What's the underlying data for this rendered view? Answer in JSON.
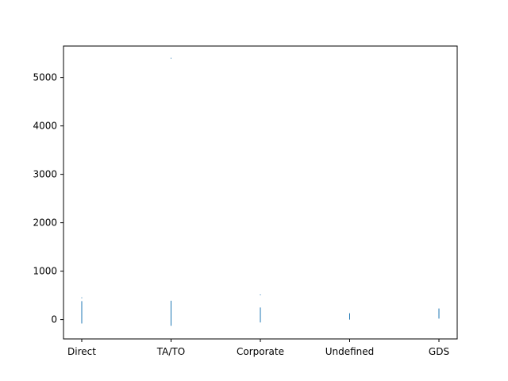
{
  "chart_data": {
    "type": "scatter",
    "title": "",
    "xlabel": "",
    "ylabel": "",
    "categories": [
      "Direct",
      "TA/TO",
      "Corporate",
      "Undefined",
      "GDS"
    ],
    "ylim": [
      -400,
      5650
    ],
    "yticks": [
      0,
      1000,
      2000,
      3000,
      4000,
      5000
    ],
    "grid": false,
    "legend": "none",
    "marker_color": "#1f77b4",
    "series": [
      {
        "points": [
          {
            "x": "Direct",
            "y_min": -80,
            "y_max": 380,
            "outliers": [
              450
            ]
          },
          {
            "x": "TA/TO",
            "y_min": -130,
            "y_max": 390,
            "outliers": [
              5400
            ]
          },
          {
            "x": "Corporate",
            "y_min": -60,
            "y_max": 250,
            "outliers": [
              510
            ]
          },
          {
            "x": "Undefined",
            "y_min": 0,
            "y_max": 130,
            "outliers": []
          },
          {
            "x": "GDS",
            "y_min": 20,
            "y_max": 230,
            "outliers": []
          }
        ]
      }
    ]
  }
}
